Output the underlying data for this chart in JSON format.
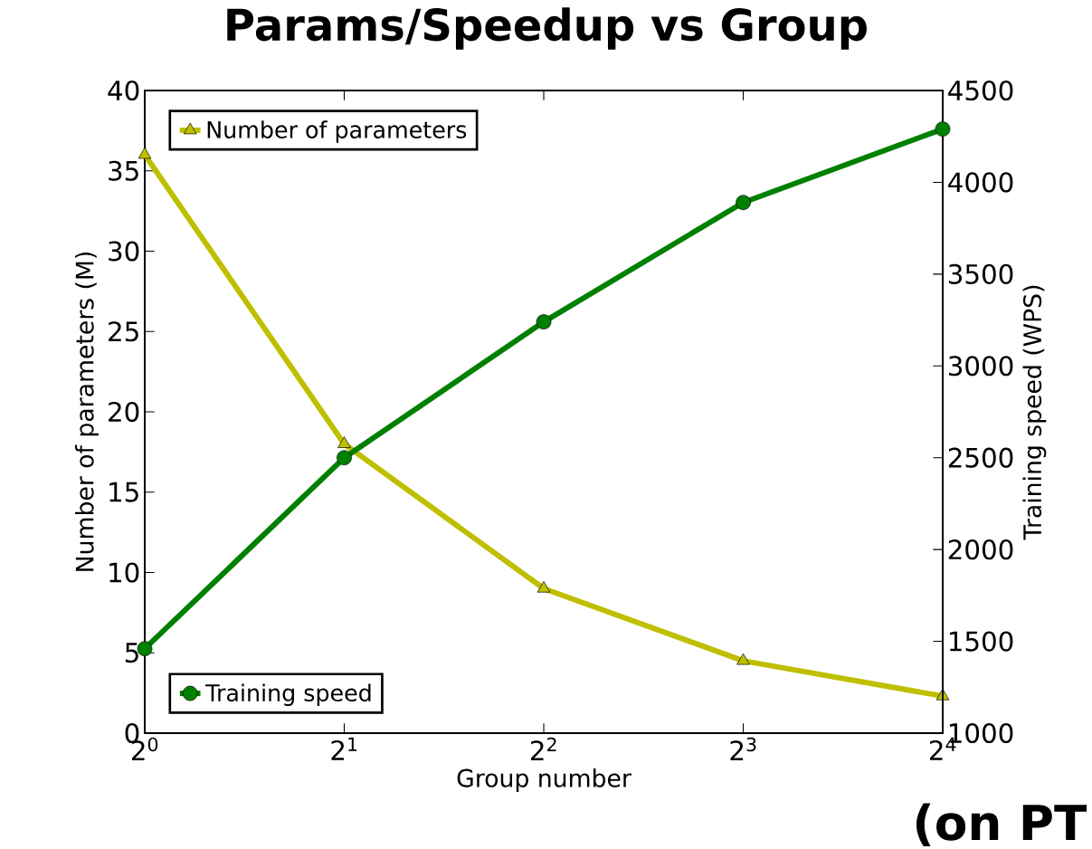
{
  "chart_data": {
    "type": "line",
    "title": "Params/Speedup vs Group",
    "annotations": [
      "(on PT"
    ],
    "xlabel": "Group number",
    "ylabel": "Number of parameters (M)",
    "y2label": "Training speed (WPS)",
    "x": [
      1,
      2,
      4,
      8,
      16
    ],
    "log": "x",
    "xlim": [
      1,
      16
    ],
    "xticks": [
      {
        "value": 1,
        "label": "2$^{0}$"
      },
      {
        "value": 2,
        "label": "2$^{1}$"
      },
      {
        "value": 4,
        "label": "2$^{2}$"
      },
      {
        "value": 8,
        "label": "2$^{3}$"
      },
      {
        "value": 16,
        "label": "2$^{4}$"
      }
    ],
    "ylim": [
      0,
      40
    ],
    "yticks": [
      0,
      5,
      10,
      15,
      20,
      25,
      30,
      35,
      40
    ],
    "y2lim": [
      1000,
      4500
    ],
    "y2ticks": [
      1000,
      1500,
      2000,
      2500,
      3000,
      3500,
      4000,
      4500
    ],
    "grid": false,
    "legend": "left",
    "line_style": "solid",
    "series": [
      {
        "name": "Number of parameters",
        "color": "#bfbf00",
        "marker": "triangle",
        "values": [
          36,
          18,
          9,
          4.5,
          2.3
        ]
      },
      {
        "name": "Training speed",
        "color": "#008000",
        "marker": "circle",
        "axis": "y2",
        "values": [
          1460,
          2500,
          3240,
          3890,
          4290
        ]
      }
    ]
  }
}
